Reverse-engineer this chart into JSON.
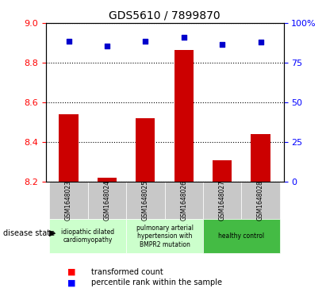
{
  "title": "GDS5610 / 7899870",
  "samples": [
    "GSM1648023",
    "GSM1648024",
    "GSM1648025",
    "GSM1648026",
    "GSM1648027",
    "GSM1648028"
  ],
  "bar_values": [
    8.54,
    8.22,
    8.52,
    8.865,
    8.305,
    8.44
  ],
  "bar_bottom": 8.2,
  "scatter_values": [
    88.5,
    85.5,
    88.5,
    91.0,
    86.5,
    88.0
  ],
  "left_ylim": [
    8.2,
    9.0
  ],
  "right_ylim": [
    0,
    100
  ],
  "left_yticks": [
    8.2,
    8.4,
    8.6,
    8.8,
    9.0
  ],
  "right_yticks": [
    0,
    25,
    50,
    75,
    100
  ],
  "right_yticklabels": [
    "0",
    "25",
    "50",
    "75",
    "100%"
  ],
  "bar_color": "#CC0000",
  "scatter_color": "#0000CC",
  "grid_color": "#000000",
  "disease_groups": [
    {
      "label": "idiopathic dilated\ncardiomyopathy",
      "indices": [
        0,
        1
      ],
      "color": "#ccffcc"
    },
    {
      "label": "pulmonary arterial\nhypertension with\nBMPR2 mutation",
      "indices": [
        2,
        3
      ],
      "color": "#ccffcc"
    },
    {
      "label": "healthy control",
      "indices": [
        4,
        5
      ],
      "color": "#44cc44"
    }
  ],
  "legend_red_label": "transformed count",
  "legend_blue_label": "percentile rank within the sample",
  "disease_state_label": "disease state",
  "bg_color_gray": "#d0d0d0",
  "bg_color_light_green": "#ccffcc",
  "bg_color_green": "#44cc44"
}
